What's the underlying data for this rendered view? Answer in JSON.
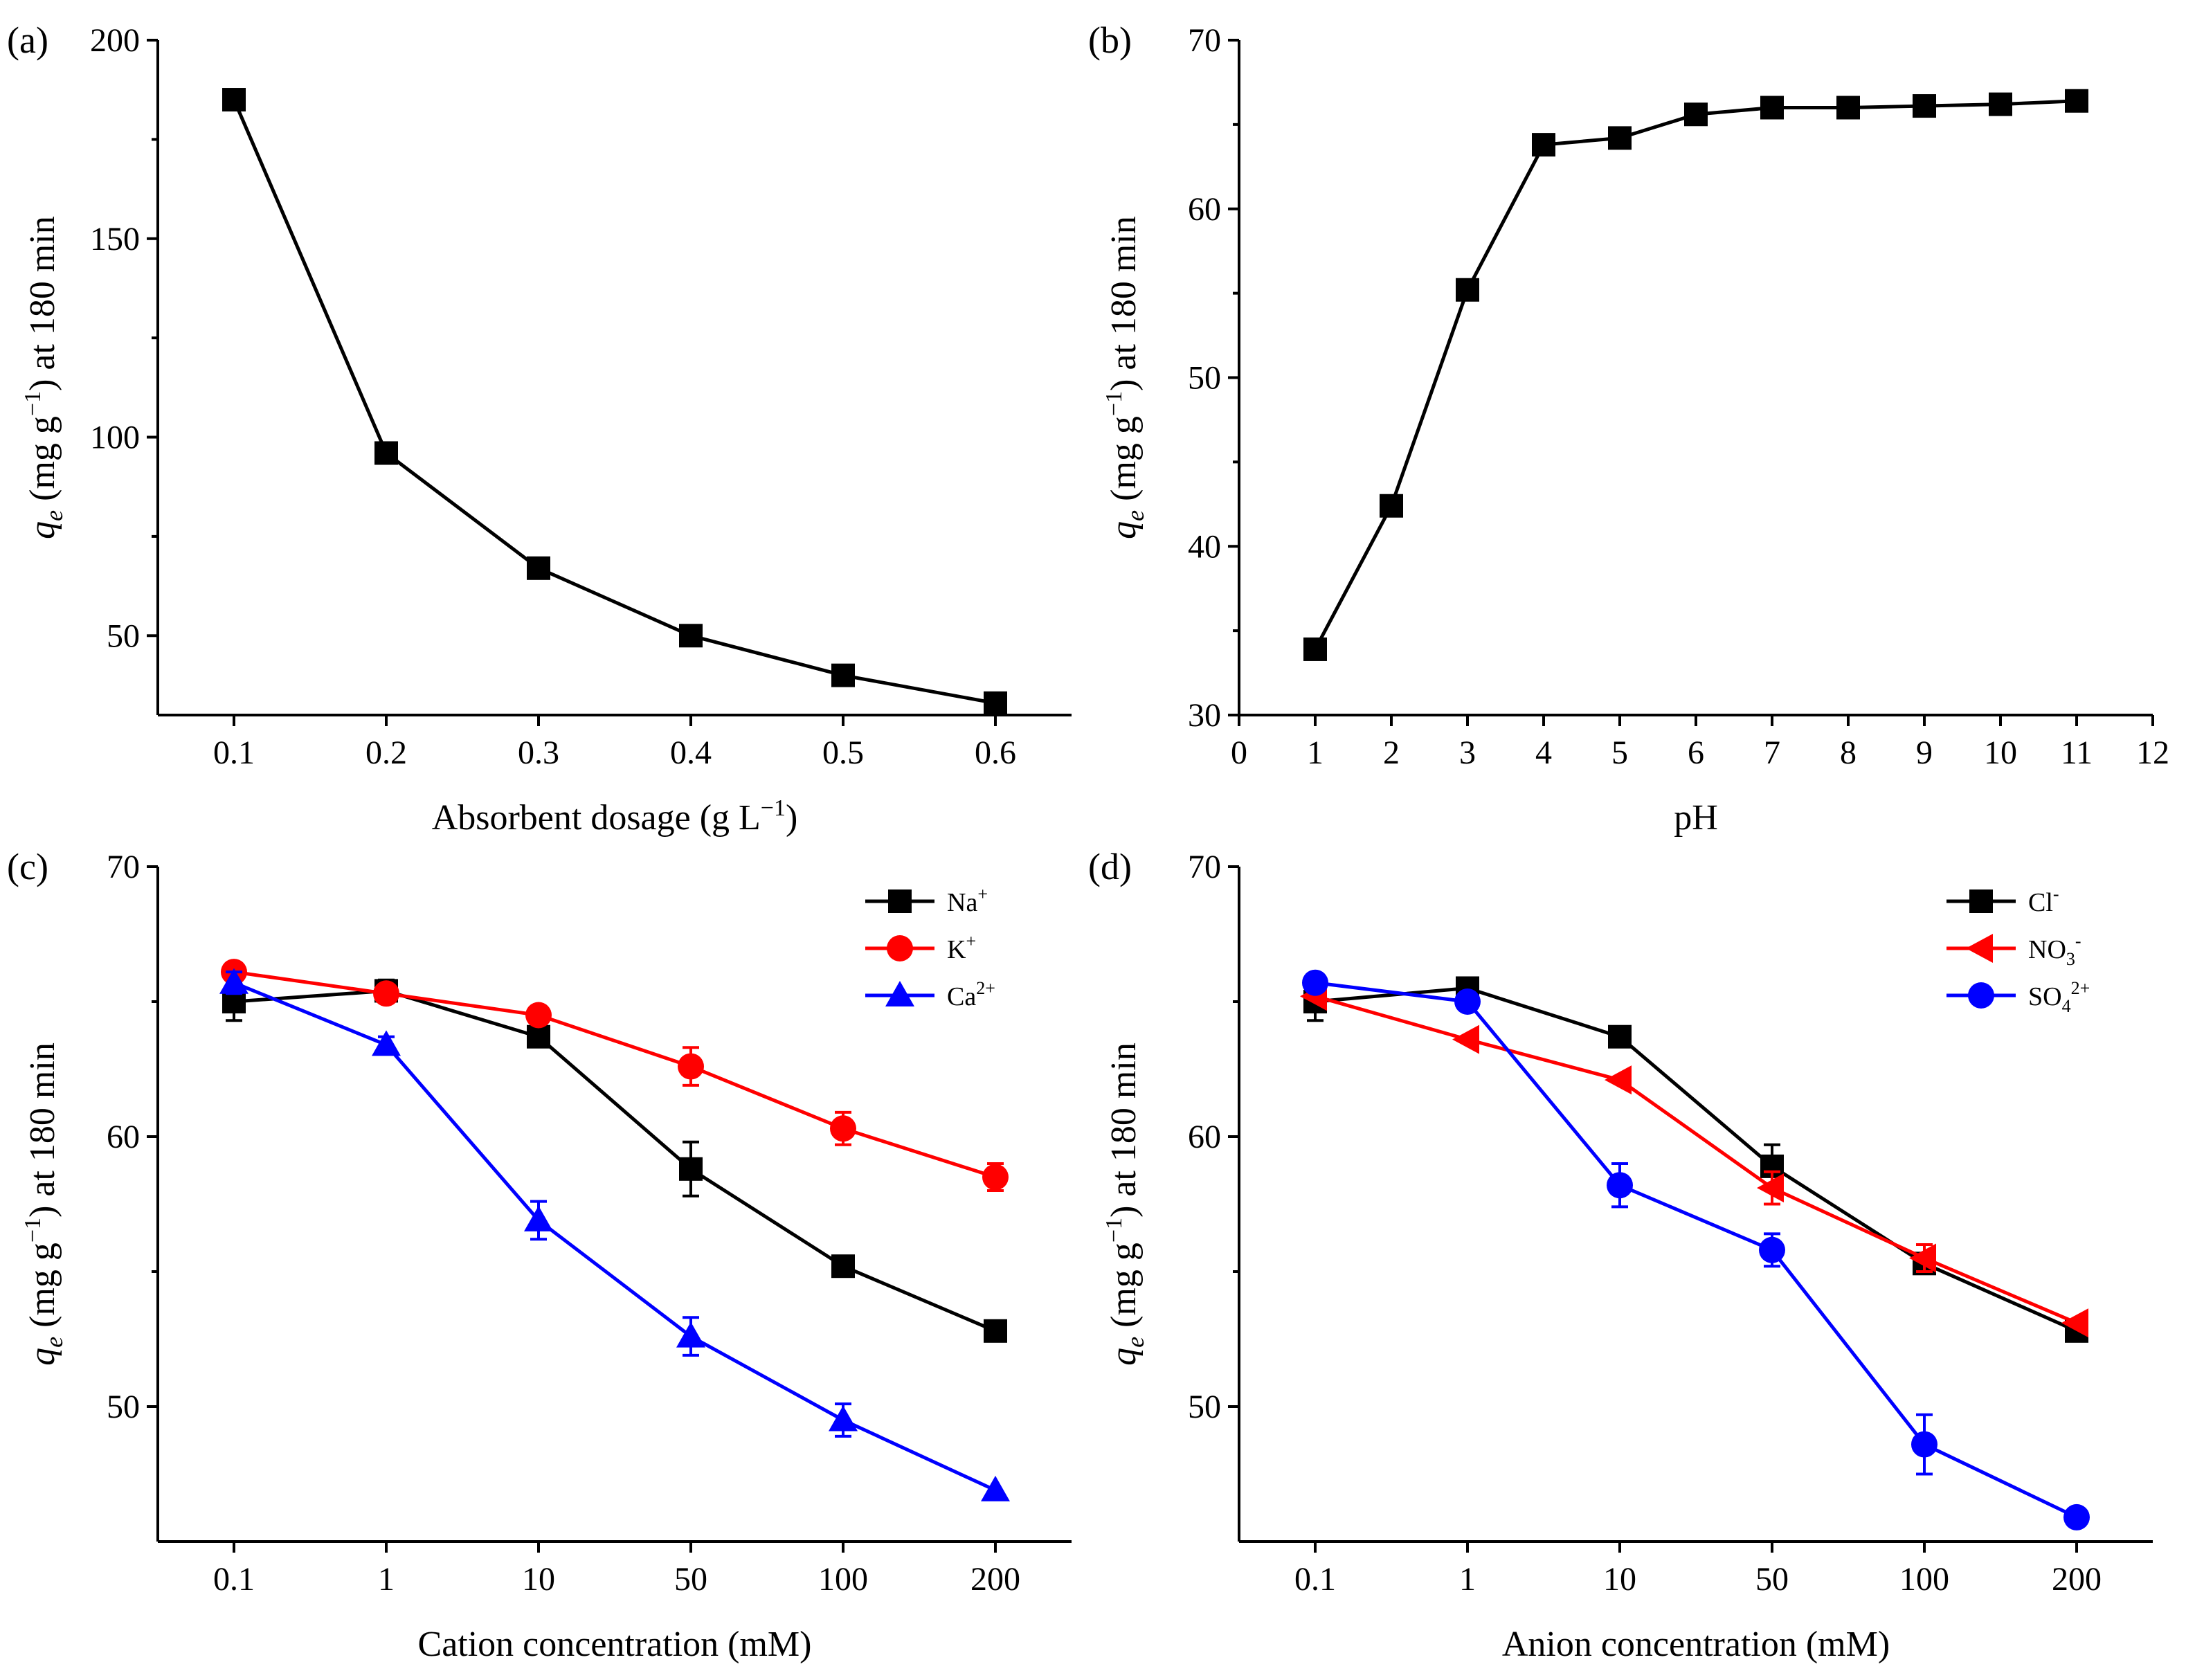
{
  "chart_data": [
    {
      "id": "a",
      "type": "line",
      "panel_label": "(a)",
      "title": "",
      "xlabel": "Absorbent dosage (g L−1)",
      "ylabel": "qe (mg g−1) at 180 min",
      "xlim": [
        0.05,
        0.65
      ],
      "ylim": [
        30,
        200
      ],
      "xticks": [
        0.1,
        0.2,
        0.3,
        0.4,
        0.5,
        0.6
      ],
      "xtick_labels": [
        "0.1",
        "0.2",
        "0.3",
        "0.4",
        "0.5",
        "0.6"
      ],
      "yticks": [
        50,
        100,
        150,
        200
      ],
      "ytick_labels": [
        "50",
        "100",
        "150",
        "200"
      ],
      "series": [
        {
          "name": "",
          "color": "#000000",
          "marker": "square",
          "x": [
            0.1,
            0.2,
            0.3,
            0.4,
            0.5,
            0.6
          ],
          "values": [
            185,
            96,
            67,
            50,
            40,
            33
          ],
          "err": [
            0,
            0,
            0,
            0,
            0,
            0
          ]
        }
      ]
    },
    {
      "id": "b",
      "type": "line",
      "panel_label": "(b)",
      "title": "",
      "xlabel": "pH",
      "ylabel": "qe (mg g−1) at 180 min",
      "xlim": [
        0,
        12
      ],
      "ylim": [
        30,
        70
      ],
      "xticks": [
        0,
        1,
        2,
        3,
        4,
        5,
        6,
        7,
        8,
        9,
        10,
        11,
        12
      ],
      "xtick_labels": [
        "0",
        "1",
        "2",
        "3",
        "4",
        "5",
        "6",
        "7",
        "8",
        "9",
        "10",
        "11",
        "12"
      ],
      "yticks": [
        30,
        40,
        50,
        60,
        70
      ],
      "ytick_labels": [
        "30",
        "40",
        "50",
        "60",
        "70"
      ],
      "series": [
        {
          "name": "",
          "color": "#000000",
          "marker": "square",
          "x": [
            1,
            2,
            3,
            4,
            5,
            6,
            7,
            8,
            9,
            10,
            11
          ],
          "values": [
            33.9,
            42.4,
            55.2,
            63.8,
            64.2,
            65.6,
            66.0,
            66.0,
            66.1,
            66.2,
            66.4
          ],
          "err": [
            0,
            0.6,
            0.5,
            0,
            0,
            0,
            0,
            0,
            0,
            0,
            0
          ]
        }
      ]
    },
    {
      "id": "c",
      "type": "line",
      "panel_label": "(c)",
      "title": "",
      "xlabel": "Cation concentration (mM)",
      "ylabel": "qe (mg g−1) at 180 min",
      "xlim": [
        -0.5,
        5.5
      ],
      "ylim": [
        45,
        70
      ],
      "xticks": [
        0,
        1,
        2,
        3,
        4,
        5
      ],
      "xtick_labels": [
        "0.1",
        "1",
        "10",
        "50",
        "100",
        "200"
      ],
      "yticks": [
        50,
        60,
        70
      ],
      "ytick_labels": [
        "50",
        "60",
        "70"
      ],
      "legend_position": "top-right",
      "series": [
        {
          "name": "Na",
          "sup": "+",
          "sub": "",
          "color": "#000000",
          "marker": "square",
          "x": [
            0,
            1,
            2,
            3,
            4,
            5
          ],
          "values": [
            65.0,
            65.4,
            63.7,
            58.8,
            55.2,
            52.8
          ],
          "err": [
            0.7,
            0.4,
            0.2,
            1.0,
            0,
            0
          ]
        },
        {
          "name": "K",
          "sup": "+",
          "sub": "",
          "color": "#ff0000",
          "marker": "circle",
          "x": [
            0,
            1,
            2,
            3,
            4,
            5
          ],
          "values": [
            66.1,
            65.3,
            64.5,
            62.6,
            60.3,
            58.5
          ],
          "err": [
            0,
            0,
            0.3,
            0.7,
            0.6,
            0.5
          ]
        },
        {
          "name": "Ca",
          "sup": "2+",
          "sub": "",
          "color": "#0000ff",
          "marker": "triangle",
          "x": [
            0,
            1,
            2,
            3,
            4,
            5
          ],
          "values": [
            65.7,
            63.4,
            56.9,
            52.6,
            49.5,
            46.9
          ],
          "err": [
            0.4,
            0.3,
            0.7,
            0.7,
            0.6,
            0
          ]
        }
      ]
    },
    {
      "id": "d",
      "type": "line",
      "panel_label": "(d)",
      "title": "",
      "xlabel": "Anion concentration (mM)",
      "ylabel": "qe (mg g−1) at 180 min",
      "xlim": [
        -0.5,
        5.5
      ],
      "ylim": [
        45,
        70
      ],
      "xticks": [
        0,
        1,
        2,
        3,
        4,
        5
      ],
      "xtick_labels": [
        "0.1",
        "1",
        "10",
        "50",
        "100",
        "200"
      ],
      "yticks": [
        50,
        60,
        70
      ],
      "ytick_labels": [
        "50",
        "60",
        "70"
      ],
      "legend_position": "top-right",
      "series": [
        {
          "name": "Cl",
          "sup": "-",
          "sub": "",
          "color": "#000000",
          "marker": "square",
          "x": [
            0,
            1,
            2,
            3,
            4,
            5
          ],
          "values": [
            65.0,
            65.5,
            63.7,
            58.9,
            55.3,
            52.8
          ],
          "err": [
            0.7,
            0.3,
            0,
            0.8,
            0,
            0
          ]
        },
        {
          "name": "NO",
          "sup": "-",
          "sub": "3",
          "color": "#ff0000",
          "marker": "triangle-left",
          "x": [
            0,
            1,
            2,
            3,
            4,
            5
          ],
          "values": [
            65.2,
            63.6,
            62.1,
            58.1,
            55.5,
            53.1
          ],
          "err": [
            0,
            0,
            0,
            0.6,
            0.5,
            0
          ]
        },
        {
          "name": "SO",
          "sup": "2+",
          "sub": "4",
          "color": "#0000ff",
          "marker": "circle",
          "x": [
            0,
            1,
            2,
            3,
            4,
            5
          ],
          "values": [
            65.7,
            65.0,
            58.2,
            55.8,
            48.6,
            45.9
          ],
          "err": [
            0,
            0,
            0.8,
            0.6,
            1.1,
            0
          ]
        }
      ]
    }
  ]
}
